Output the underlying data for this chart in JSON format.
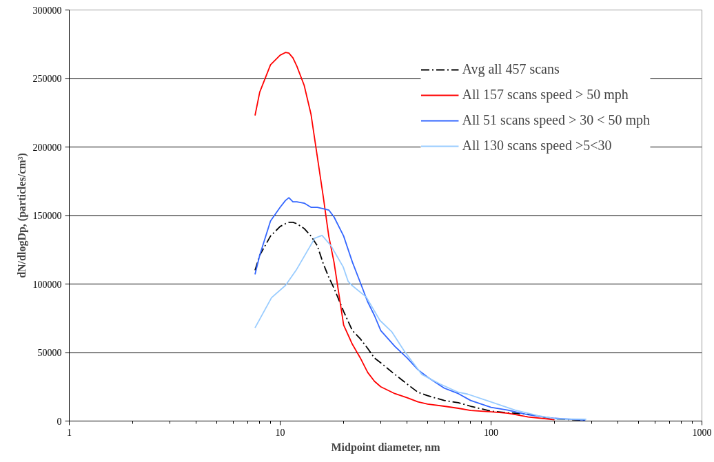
{
  "chart_data": {
    "type": "line",
    "xlabel": "Midpoint diameter, nm",
    "ylabel": "dN/dlogDp, (particles/cm³)",
    "log": "x",
    "xlim": [
      1,
      1000
    ],
    "xticks": [
      1,
      10,
      100,
      1000
    ],
    "ylim": [
      0,
      300000
    ],
    "yticks": [
      0,
      50000,
      100000,
      150000,
      200000,
      250000,
      300000
    ],
    "grid": "y",
    "legend": "top right",
    "marker": "none",
    "x": [
      7.6,
      8,
      9,
      10,
      10.6,
      11,
      11.5,
      12,
      13,
      14,
      15,
      16,
      17,
      18,
      20,
      22,
      24,
      26,
      28,
      30,
      35,
      40,
      45,
      50,
      60,
      70,
      80,
      100,
      120,
      150,
      200,
      280
    ],
    "series": [
      {
        "name": "Avg all 457 scans",
        "color": "#000000",
        "line_style": "dashdot",
        "values": [
          110000,
          121000,
          135000,
          142000,
          144000,
          145000,
          145000,
          144000,
          140500,
          135000,
          128000,
          115000,
          105000,
          97000,
          80000,
          66000,
          60000,
          53000,
          46000,
          42500,
          34000,
          27000,
          21000,
          18500,
          15000,
          13400,
          10800,
          7200,
          6000,
          5000,
          1500,
          500
        ]
      },
      {
        "name": "All 157 scans speed > 50 mph",
        "color": "#ff0000",
        "line_style": "solid",
        "values": [
          223000,
          240000,
          260000,
          267000,
          269000,
          268500,
          265000,
          259000,
          245000,
          224000,
          193000,
          164000,
          135000,
          116000,
          70000,
          56000,
          46000,
          35500,
          29000,
          25000,
          20000,
          17000,
          14000,
          12400,
          10800,
          9300,
          7700,
          6700,
          5700,
          3000,
          1000,
          null
        ]
      },
      {
        "name": "All 51 scans speed > 30 < 50 mph",
        "color": "#3366ff",
        "line_style": "solid",
        "values": [
          107000,
          121000,
          146000,
          156000,
          161000,
          163000,
          160000,
          160000,
          159000,
          156000,
          156000,
          155000,
          154000,
          149000,
          135000,
          116000,
          101000,
          87000,
          77000,
          66000,
          54500,
          46000,
          37500,
          32000,
          24000,
          20000,
          15000,
          10000,
          8000,
          4600,
          2000,
          700
        ]
      },
      {
        "name": "All 130 scans speed >5<30",
        "color": "#99ccff",
        "line_style": "solid",
        "x": [
          7.6,
          9.1,
          10.6,
          11.9,
          14.6,
          15.8,
          17.4,
          19.9,
          21,
          21.9,
          25.6,
          29.7,
          33.9,
          38.8,
          47,
          57.3,
          70,
          77.6,
          98,
          130,
          167,
          205,
          283
        ],
        "values": [
          68000,
          90000,
          99000,
          110000,
          133500,
          135500,
          128000,
          112500,
          102000,
          99000,
          90500,
          73500,
          65000,
          51000,
          34000,
          27000,
          21000,
          19600,
          14400,
          8000,
          4000,
          1500,
          1300
        ]
      }
    ]
  }
}
